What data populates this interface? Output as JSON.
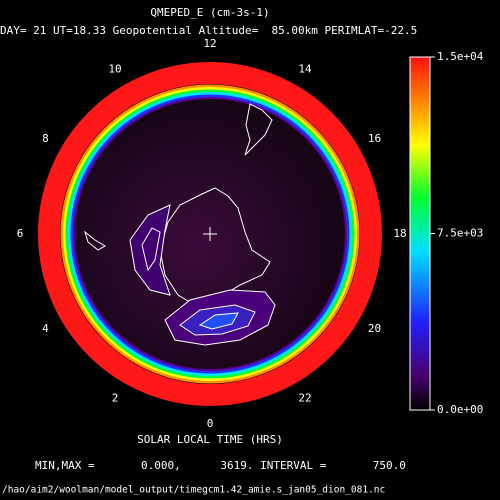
{
  "title": "QMEPED_E (cm-3s-1)",
  "subtitle": "DAY= 21 UT=18.33 Geopotential Altitude=  85.00km PERIMLAT=-22.5",
  "local_time_ticks": [
    12,
    14,
    16,
    18,
    20,
    22,
    0,
    2,
    4,
    6,
    8,
    10
  ],
  "xlabel": "SOLAR LOCAL TIME (HRS)",
  "colorbar": {
    "lim": [
      0,
      15000
    ],
    "ticks": [
      {
        "value": 15000,
        "label": "1.5e+04"
      },
      {
        "value": 7500,
        "label": "7.5e+03"
      },
      {
        "value": 0,
        "label": "0.0e+00"
      }
    ]
  },
  "stats": "MIN,MAX =       0.000,      3619. INTERVAL =       750.0",
  "file_path": "/hao/aim2/woolman/model_output/timegcm1.42_amie.s_jan05_dion_081.nc"
}
